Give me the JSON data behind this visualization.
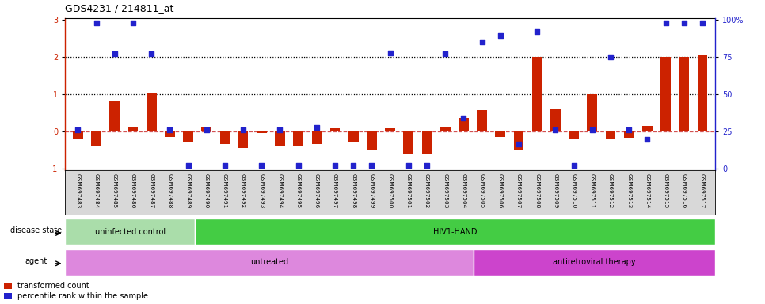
{
  "title": "GDS4231 / 214811_at",
  "samples": [
    "GSM697483",
    "GSM697484",
    "GSM697485",
    "GSM697486",
    "GSM697487",
    "GSM697488",
    "GSM697489",
    "GSM697490",
    "GSM697491",
    "GSM697492",
    "GSM697493",
    "GSM697494",
    "GSM697495",
    "GSM697496",
    "GSM697497",
    "GSM697498",
    "GSM697499",
    "GSM697500",
    "GSM697501",
    "GSM697502",
    "GSM697503",
    "GSM697504",
    "GSM697505",
    "GSM697506",
    "GSM697507",
    "GSM697508",
    "GSM697509",
    "GSM697510",
    "GSM697511",
    "GSM697512",
    "GSM697513",
    "GSM697514",
    "GSM697515",
    "GSM697516",
    "GSM697517"
  ],
  "red_bars": [
    -0.22,
    -0.4,
    0.8,
    0.12,
    1.05,
    -0.15,
    -0.3,
    0.1,
    -0.35,
    -0.45,
    -0.05,
    -0.38,
    -0.38,
    -0.35,
    0.08,
    -0.28,
    -0.5,
    0.08,
    -0.6,
    -0.6,
    0.12,
    0.35,
    0.58,
    -0.15,
    -0.5,
    2.0,
    0.6,
    -0.2,
    1.0,
    -0.22,
    -0.18,
    0.15,
    2.0,
    2.0,
    2.05
  ],
  "blue_dots_y": [
    0.05,
    2.92,
    2.08,
    2.92,
    2.08,
    0.05,
    -0.92,
    0.05,
    -0.92,
    0.05,
    -0.92,
    0.05,
    -0.92,
    0.1,
    -0.92,
    -0.92,
    -0.92,
    2.12,
    -0.92,
    -0.92,
    2.08,
    0.35,
    2.42,
    2.58,
    -0.35,
    2.68,
    0.05,
    -0.92,
    0.05,
    2.0,
    0.05,
    -0.22,
    2.92,
    2.92,
    2.92
  ],
  "ylim": [
    -1.05,
    3.05
  ],
  "yticks_left": [
    -1,
    0,
    1,
    2,
    3
  ],
  "yticks_right_labels": [
    "0",
    "25",
    "50",
    "75",
    "100%"
  ],
  "disease_state_groups": [
    {
      "label": "uninfected control",
      "start": 0,
      "end": 7,
      "color": "#aaddaa"
    },
    {
      "label": "HIV1-HAND",
      "start": 7,
      "end": 35,
      "color": "#44cc44"
    }
  ],
  "agent_groups": [
    {
      "label": "untreated",
      "start": 0,
      "end": 22,
      "color": "#dd88dd"
    },
    {
      "label": "antiretroviral therapy",
      "start": 22,
      "end": 35,
      "color": "#cc44cc"
    }
  ],
  "bar_color": "#cc2200",
  "dot_color": "#2222cc",
  "zero_line_color": "#cc3333",
  "tick_bg_color": "#d8d8d8",
  "fig_bg": "#ffffff"
}
